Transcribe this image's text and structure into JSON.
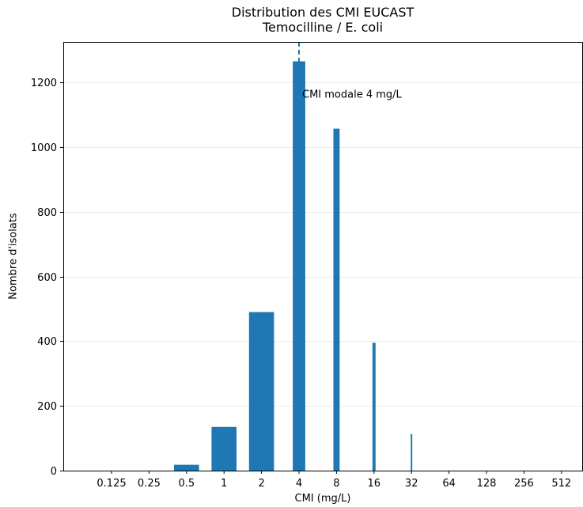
{
  "chart_data": {
    "type": "bar",
    "title": "Distribution des CMI EUCAST",
    "subtitle": "Temocilline / E. coli",
    "xlabel": "CMI (mg/L)",
    "ylabel": "Nombre d'isolats",
    "x_scale": "log2",
    "categories": [
      "0.125",
      "0.25",
      "0.5",
      "1",
      "2",
      "4",
      "8",
      "16",
      "32",
      "64",
      "128",
      "256",
      "512"
    ],
    "x": [
      0.125,
      0.25,
      0.5,
      1,
      2,
      4,
      8,
      16,
      32,
      64,
      128,
      256,
      512
    ],
    "values": [
      0,
      0,
      18,
      135,
      490,
      1265,
      1057,
      395,
      113,
      0,
      0,
      0,
      0
    ],
    "ylim": [
      0,
      1325
    ],
    "yticks": [
      0,
      200,
      400,
      600,
      800,
      1000,
      1200
    ],
    "bar_color": "#1f77b4",
    "grid": "y",
    "annotation": {
      "text": "CMI modale 4 mg/L",
      "x": 4,
      "y": 1165
    },
    "reference_line": {
      "x": 4,
      "style": "dashed",
      "color": "#1f77b4"
    }
  }
}
